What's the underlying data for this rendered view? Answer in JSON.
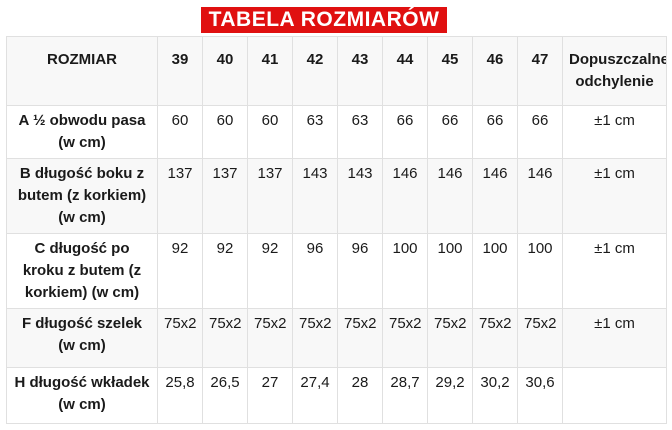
{
  "banner": {
    "title": "TABELA ROZMIARÓW"
  },
  "colors": {
    "banner_red": "#e01010",
    "banner_text": "#ffffff",
    "border": "#e0e0e0",
    "stripe": "#f8f8f8",
    "text": "#1a1a1a"
  },
  "table": {
    "columns": [
      "ROZMIAR",
      "39",
      "40",
      "41",
      "42",
      "43",
      "44",
      "45",
      "46",
      "47",
      "Dopuszczalne odchylenie"
    ],
    "rows": [
      {
        "label": "A ½ obwodu pasa (w cm)",
        "values": [
          "60",
          "60",
          "60",
          "63",
          "63",
          "66",
          "66",
          "66",
          "66"
        ],
        "deviation": "±1 cm"
      },
      {
        "label": "B długość boku z butem (z korkiem) (w cm)",
        "values": [
          "137",
          "137",
          "137",
          "143",
          "143",
          "146",
          "146",
          "146",
          "146"
        ],
        "deviation": "±1 cm"
      },
      {
        "label": "C długość po kroku z butem (z korkiem) (w cm)",
        "values": [
          "92",
          "92",
          "92",
          "96",
          "96",
          "100",
          "100",
          "100",
          "100"
        ],
        "deviation": "±1 cm"
      },
      {
        "label": "F długość szelek (w cm)",
        "values": [
          "75x2",
          "75x2",
          "75x2",
          "75x2",
          "75x2",
          "75x2",
          "75x2",
          "75x2",
          "75x2"
        ],
        "deviation": "±1 cm"
      },
      {
        "label": "H długość wkładek (w cm)",
        "values": [
          "25,8",
          "26,5",
          "27",
          "27,4",
          "28",
          "28,7",
          "29,2",
          "30,2",
          "30,6"
        ],
        "deviation": ""
      }
    ]
  }
}
